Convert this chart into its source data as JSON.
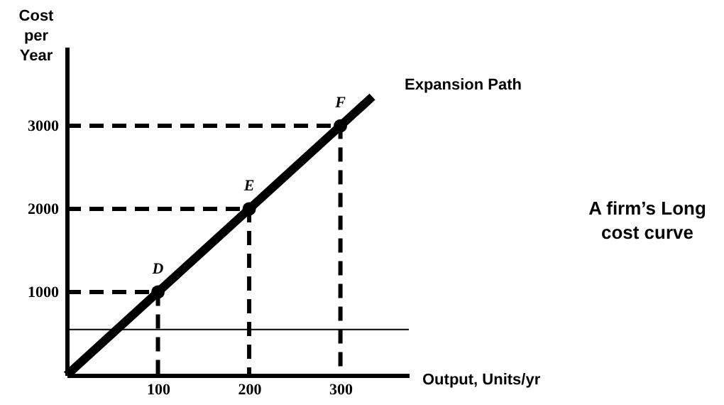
{
  "chart_data": {
    "type": "line",
    "xlabel": "Output, Units/yr",
    "ylabel": "Cost per Year",
    "xlim": [
      0,
      375
    ],
    "ylim": [
      0,
      3950
    ],
    "xticks": [
      100,
      200,
      300
    ],
    "yticks": [
      1000,
      2000,
      3000
    ],
    "grid": false,
    "series": [
      {
        "color": "#000000",
        "line_style": "dashed",
        "x": [
          0,
          100,
          100
        ],
        "values": [
          1000,
          1000,
          0
        ]
      },
      {
        "color": "#000000",
        "line_style": "dashed",
        "x": [
          0,
          200,
          200
        ],
        "values": [
          2000,
          2000,
          0
        ]
      },
      {
        "color": "#000000",
        "line_style": "dashed",
        "x": [
          0,
          300,
          300
        ],
        "values": [
          3000,
          3000,
          0
        ]
      },
      {
        "color": "#000000",
        "line_style": "solid",
        "x": [
          0,
          100,
          200,
          300,
          335
        ],
        "values": [
          0,
          1000,
          2000,
          3000,
          3350
        ]
      },
      {
        "type": "scatter",
        "color": "#000000",
        "marker": "circle",
        "x": [
          100,
          200,
          300
        ],
        "values": [
          1000,
          2000,
          3000
        ]
      }
    ],
    "ref_lines": [
      {
        "axis": "y",
        "value": 550,
        "label": null,
        "color": "#000000"
      }
    ],
    "annotations": [
      {
        "text": "D",
        "x": 100,
        "y": 1000
      },
      {
        "text": "E",
        "x": 200,
        "y": 2000
      },
      {
        "text": "F",
        "x": 300,
        "y": 3000
      },
      "Expansion Path",
      "A firm’s Long cost curve"
    ]
  }
}
